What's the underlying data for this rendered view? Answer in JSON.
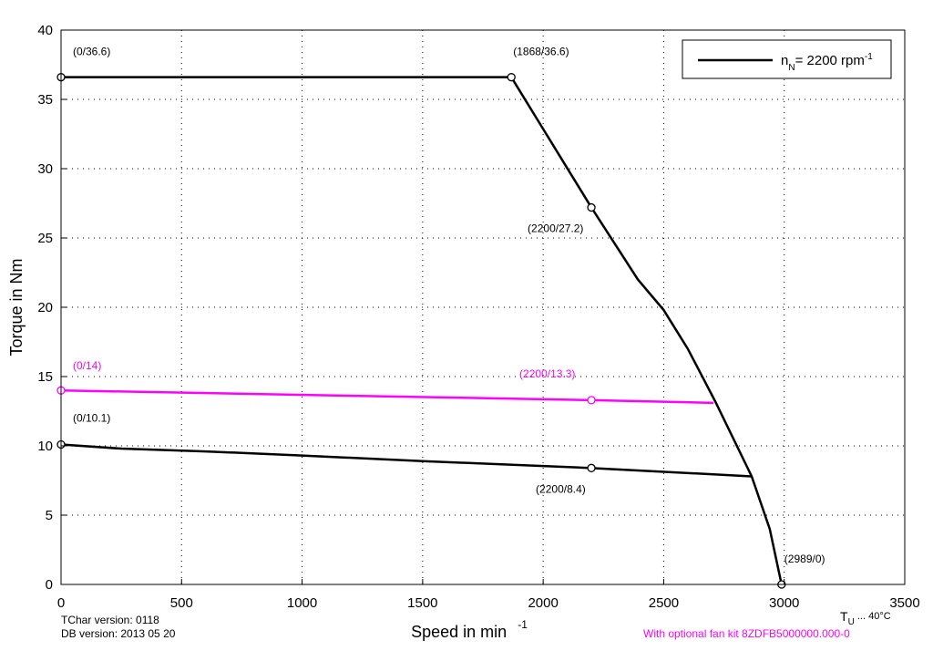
{
  "chart_data": {
    "type": "line",
    "xlabel": {
      "text": "Speed in min",
      "sup": "-1"
    },
    "ylabel": "Torque in Nm",
    "xlim": [
      0,
      3500
    ],
    "xticks": [
      0,
      500,
      1000,
      1500,
      2000,
      2500,
      3000,
      3500
    ],
    "ylim": [
      0,
      40
    ],
    "yticks": [
      0,
      5,
      10,
      15,
      20,
      25,
      30,
      35,
      40
    ],
    "grid": true,
    "series": [
      {
        "color": "#000000",
        "x": [
          0,
          1868,
          2200,
          2393,
          2500,
          2600,
          2714,
          2865,
          2940,
          2989
        ],
        "values": [
          36.6,
          36.6,
          27.2,
          22.0,
          19.8,
          17.0,
          13.2,
          7.8,
          4.0,
          0
        ]
      },
      {
        "color": "#ff00ff",
        "x": [
          0,
          2200,
          2706
        ],
        "values": [
          14,
          13.3,
          13.1
        ]
      },
      {
        "color": "#000000",
        "x": [
          0,
          250,
          600,
          1000,
          1500,
          2200,
          2865
        ],
        "values": [
          10.1,
          9.8,
          9.6,
          9.3,
          8.9,
          8.4,
          7.8
        ]
      }
    ],
    "annotations": [
      {
        "text": "(0/36.6)",
        "x": 0,
        "y": 36.6,
        "color": "#000000"
      },
      {
        "text": "(1868/36.6)",
        "x": 1868,
        "y": 36.6,
        "color": "#000000"
      },
      {
        "text": "(2200/27.2)",
        "x": 2200,
        "y": 27.2,
        "color": "#000000"
      },
      {
        "text": "(0/14)",
        "x": 0,
        "y": 14,
        "color": "#ff00ff"
      },
      {
        "text": "(2200/13.3)",
        "x": 2200,
        "y": 13.3,
        "color": "#ff00ff"
      },
      {
        "text": "(0/10.1)",
        "x": 0,
        "y": 10.1,
        "color": "#000000"
      },
      {
        "text": "(2200/8.4)",
        "x": 2200,
        "y": 8.4,
        "color": "#000000"
      },
      {
        "text": "(2989/0)",
        "x": 2989,
        "y": 0,
        "color": "#000000"
      }
    ],
    "legend": {
      "text": "n",
      "sub": "N",
      "rest": "= 2200 rpm",
      "sup": "-1",
      "color": "#000000"
    },
    "footer": {
      "tchar": "TChar version: 0118",
      "db": "DB version: 2013 05 20",
      "temp": {
        "text": "T",
        "sub": "U",
        "rest": " ... 40°C"
      },
      "fan": "With optional fan kit 8ZDFB5000000.000-0",
      "fan_color": "#ff00ff"
    }
  }
}
